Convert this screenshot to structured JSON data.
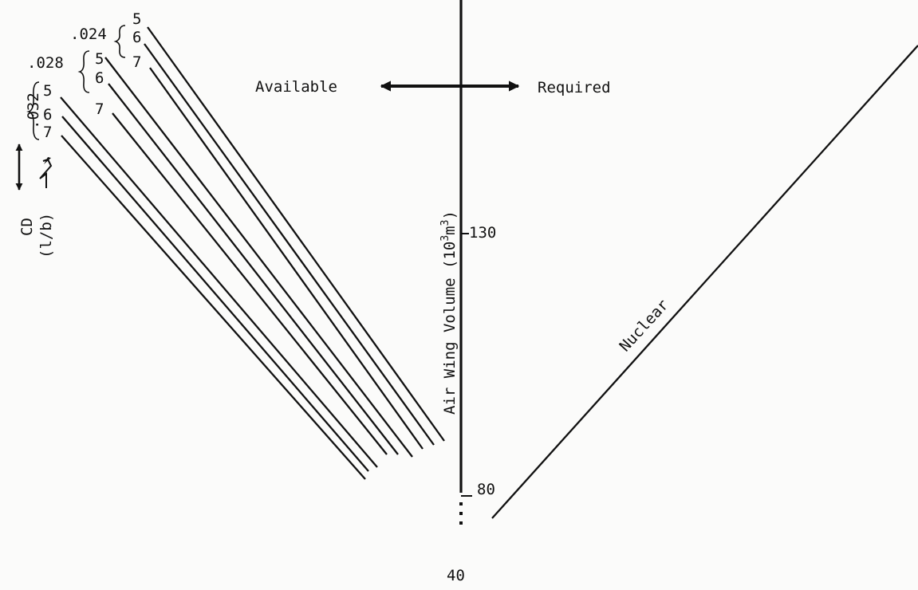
{
  "diagram": {
    "available_label": "Available",
    "required_label": "Required",
    "axis_label": "Air Wing Volume (10",
    "axis_label_exp1": "3",
    "axis_label_mid": "m",
    "axis_label_exp2": "3",
    "axis_label_end": ")",
    "tick_130": "130",
    "tick_80": "80",
    "nuclear_label": "Nuclear",
    "cd_label": "CD",
    "lb_label": "(l/b)",
    "page_number": "40",
    "groups": [
      {
        "cd": ".024",
        "lbs": [
          "5",
          "6",
          "7"
        ]
      },
      {
        "cd": ".028",
        "lbs": [
          "5",
          "6",
          "7"
        ]
      },
      {
        "cd": ".032",
        "lbs": [
          "5",
          "6",
          "7"
        ]
      }
    ]
  }
}
